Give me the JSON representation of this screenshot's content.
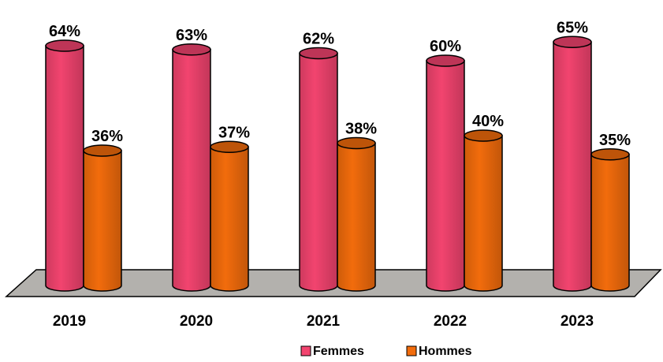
{
  "chart_data": {
    "type": "bar",
    "style": "3d-cylinder",
    "categories": [
      "2019",
      "2020",
      "2021",
      "2022",
      "2023"
    ],
    "series": [
      {
        "name": "Femmes",
        "values": [
          64,
          63,
          62,
          60,
          65
        ],
        "labels": [
          "64%",
          "63%",
          "62%",
          "60%",
          "65%"
        ],
        "color": "#f2446f"
      },
      {
        "name": "Hommes",
        "values": [
          36,
          37,
          38,
          40,
          35
        ],
        "labels": [
          "36%",
          "37%",
          "38%",
          "40%",
          "35%"
        ],
        "color": "#f26c0c"
      }
    ],
    "unit": "%",
    "ylim": [
      0,
      65
    ],
    "grid": false,
    "legend_position": "bottom",
    "floor_color": "#b3b1ad"
  }
}
